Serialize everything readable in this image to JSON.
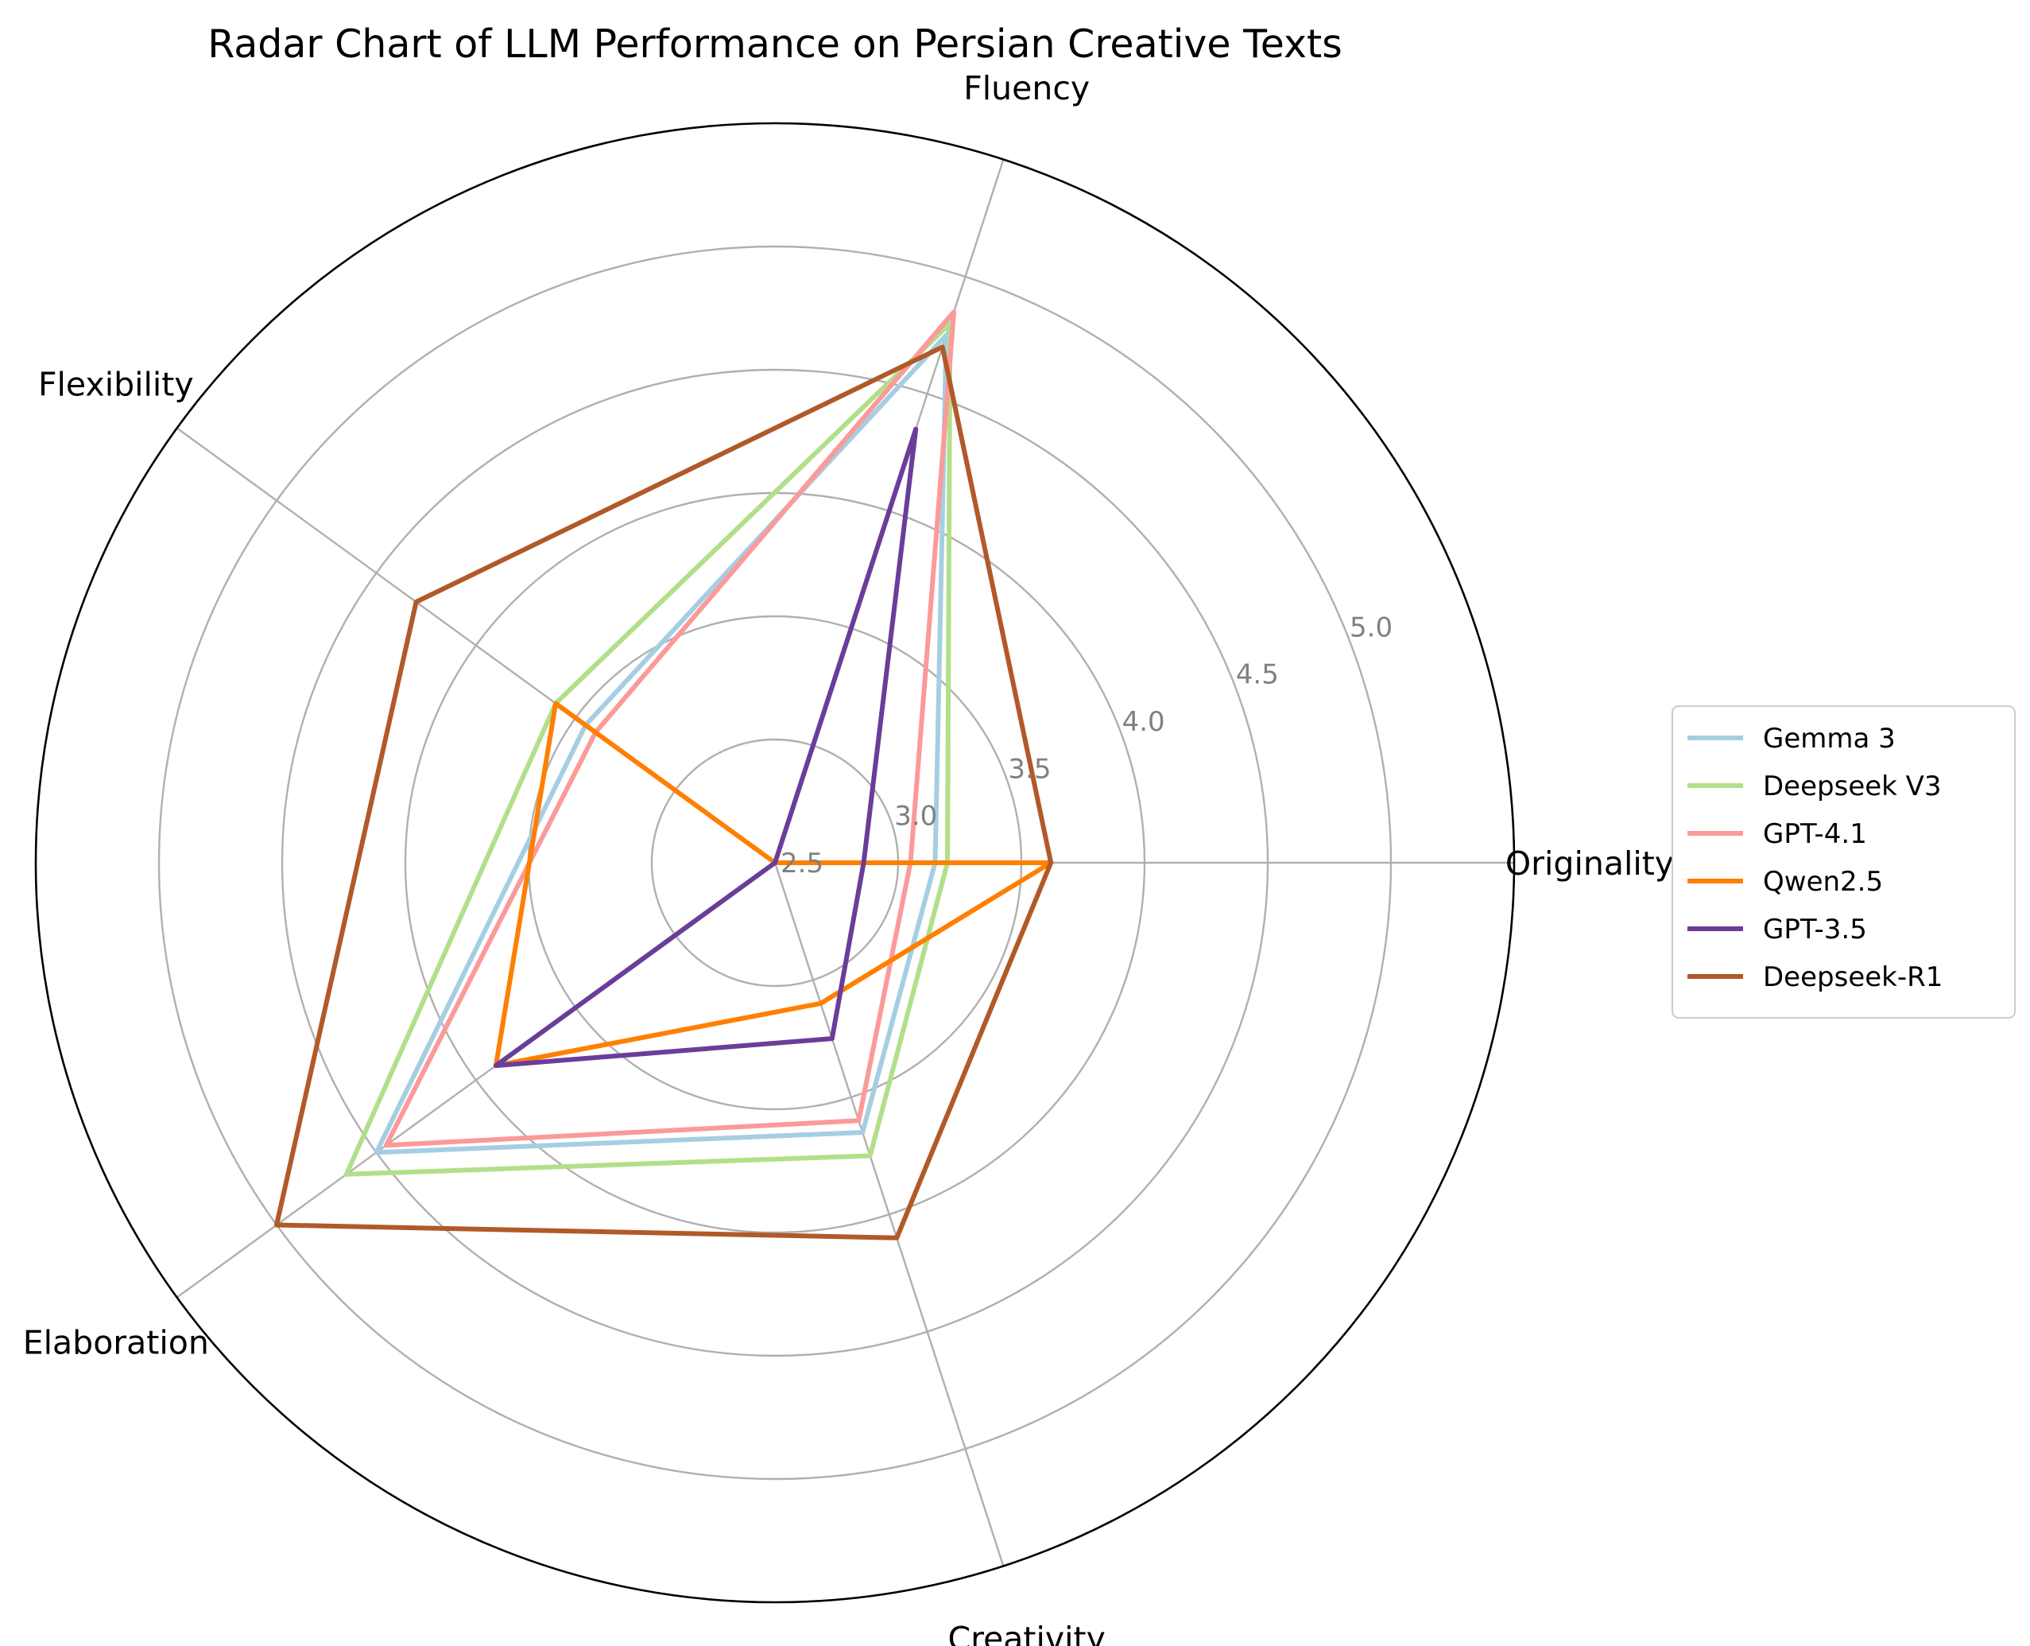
{
  "chart_data": {
    "type": "radar",
    "title": "Radar Chart of LLM Performance on Persian Creative Texts",
    "axes": [
      "Originality",
      "Fluency",
      "Flexibility",
      "Elaboration",
      "Creativity"
    ],
    "r_range": [
      2.5,
      5.5
    ],
    "r_ticks": [
      2.5,
      3.0,
      3.5,
      4.0,
      4.5,
      5.0
    ],
    "r_tick_labels": [
      "2.5",
      "3.0",
      "3.5",
      "4.0",
      "4.5",
      "5.0"
    ],
    "grid": true,
    "legend_position": "right",
    "series": [
      {
        "name": "Gemma 3",
        "color": "#a6cee3",
        "values": [
          3.15,
          4.75,
          3.45,
          4.5,
          3.65
        ]
      },
      {
        "name": "Deepseek V3",
        "color": "#b2df8a",
        "values": [
          3.2,
          4.8,
          3.6,
          4.65,
          3.75
        ]
      },
      {
        "name": "GPT-4.1",
        "color": "#fb9a99",
        "values": [
          3.05,
          4.85,
          3.4,
          4.45,
          3.6
        ]
      },
      {
        "name": "Qwen2.5",
        "color": "#ff7f00",
        "values": [
          3.62,
          2.5,
          3.6,
          3.9,
          3.1
        ]
      },
      {
        "name": "GPT-3.5",
        "color": "#6a3d9a",
        "values": [
          2.86,
          4.35,
          2.5,
          3.9,
          3.25
        ]
      },
      {
        "name": "Deepseek-R1",
        "color": "#b15928",
        "values": [
          3.62,
          4.7,
          4.3,
          5.0,
          4.1
        ]
      }
    ]
  }
}
